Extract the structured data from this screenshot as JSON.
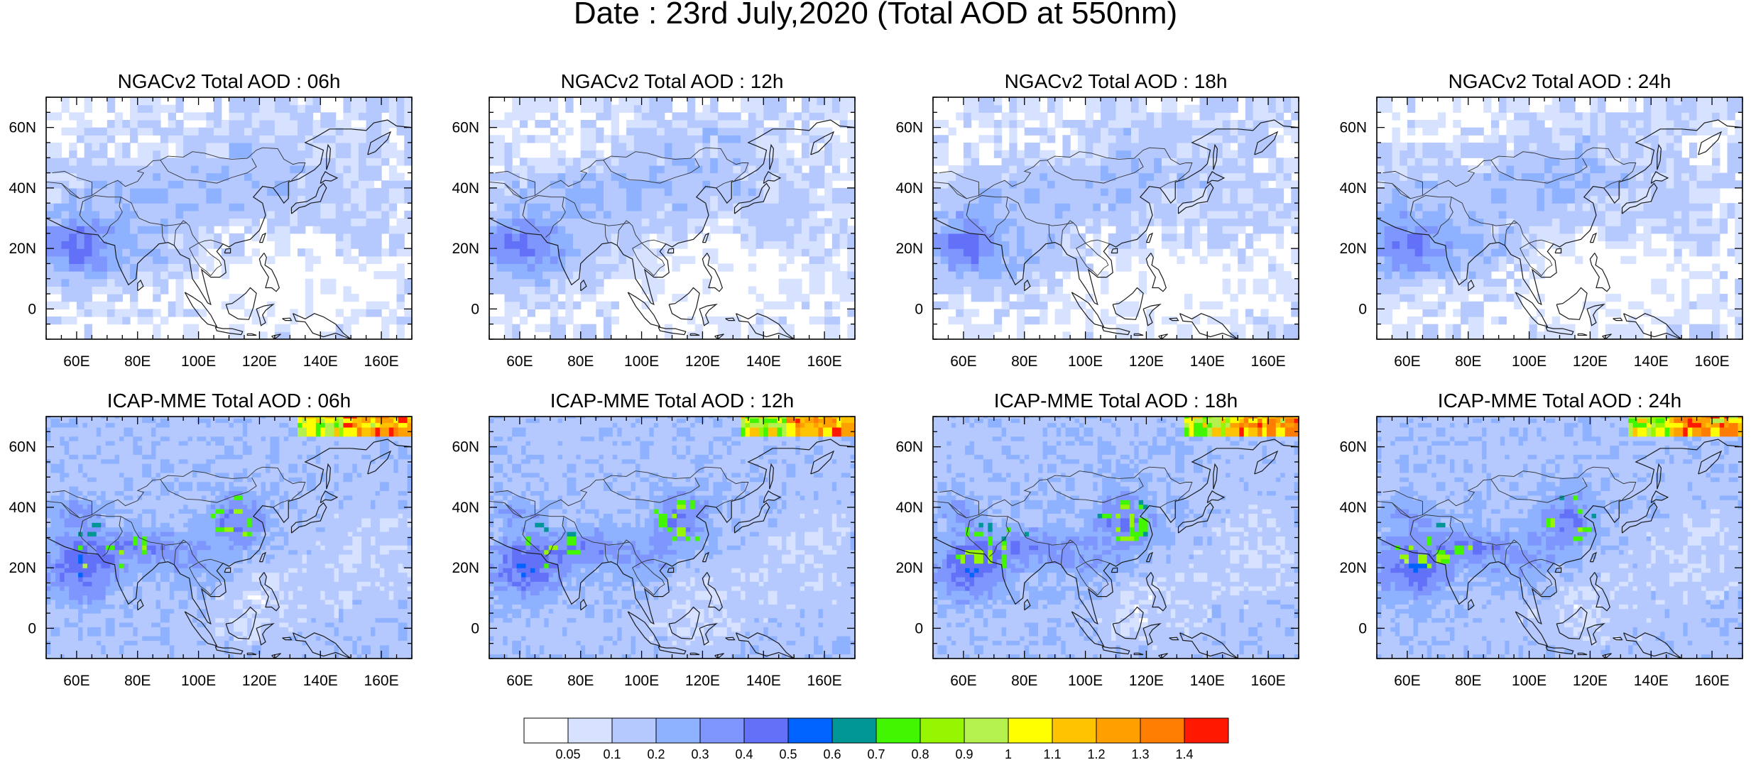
{
  "figure_title": "Date : 23rd July,2020 (Total AOD at 550nm)",
  "panels": [
    {
      "title": "NGACv2 Total AOD : 06h",
      "model": "NGACv2",
      "hour": "06h"
    },
    {
      "title": "NGACv2 Total AOD : 12h",
      "model": "NGACv2",
      "hour": "12h"
    },
    {
      "title": "NGACv2 Total AOD : 18h",
      "model": "NGACv2",
      "hour": "18h"
    },
    {
      "title": "NGACv2 Total AOD : 24h",
      "model": "NGACv2",
      "hour": "24h"
    },
    {
      "title": "ICAP-MME Total AOD : 06h",
      "model": "ICAP-MME",
      "hour": "06h"
    },
    {
      "title": "ICAP-MME Total AOD : 12h",
      "model": "ICAP-MME",
      "hour": "12h"
    },
    {
      "title": "ICAP-MME Total AOD : 18h",
      "model": "ICAP-MME",
      "hour": "18h"
    },
    {
      "title": "ICAP-MME Total AOD : 24h",
      "model": "ICAP-MME",
      "hour": "24h"
    }
  ],
  "map": {
    "lon_range": [
      50,
      170
    ],
    "lat_range": [
      -10,
      70
    ],
    "lon_ticks": [
      "60E",
      "80E",
      "100E",
      "120E",
      "140E",
      "160E"
    ],
    "lat_ticks": [
      "60N",
      "40N",
      "20N",
      "0"
    ]
  },
  "colorbar": {
    "labels": [
      "0.05",
      "0.1",
      "0.2",
      "0.3",
      "0.4",
      "0.5",
      "0.6",
      "0.7",
      "0.8",
      "0.9",
      "1",
      "1.1",
      "1.2",
      "1.3",
      "1.4"
    ],
    "colors": [
      "#ffffff",
      "#d6e2ff",
      "#b5c9ff",
      "#8eb2ff",
      "#7f96ff",
      "#6370f8",
      "#0063ff",
      "#009696",
      "#42f500",
      "#96f500",
      "#b4f04e",
      "#ffff00",
      "#ffc300",
      "#ffa000",
      "#ff7d00",
      "#ff1900"
    ]
  },
  "chart_data": {
    "type": "heatmap",
    "variable": "Total AOD at 550nm",
    "date": "23rd July,2020",
    "models": [
      "NGACv2",
      "ICAP-MME"
    ],
    "forecast_hours": [
      "06h",
      "12h",
      "18h",
      "24h"
    ],
    "x_range": [
      50,
      170
    ],
    "y_range": [
      -10,
      70
    ],
    "levels": [
      0.05,
      0.1,
      0.2,
      0.3,
      0.4,
      0.5,
      0.6,
      0.7,
      0.8,
      0.9,
      1,
      1.1,
      1.2,
      1.3,
      1.4
    ],
    "features": [
      {
        "model": "NGACv2",
        "region": "Arabian Sea / Northwest India",
        "approx_aod": [
          0.3,
          0.5
        ]
      },
      {
        "model": "NGACv2",
        "region": "Central and East Asia",
        "approx_aod": [
          0.1,
          0.3
        ]
      },
      {
        "model": "ICAP-MME",
        "region": "Siberia near 65N, 140E-170E",
        "approx_aod": [
          1.0,
          1.4
        ]
      },
      {
        "model": "ICAP-MME",
        "region": "North China Plain",
        "approx_aod": [
          0.6,
          1.0
        ]
      },
      {
        "model": "ICAP-MME",
        "region": "Arabian Sea / Indo-Gangetic Plain",
        "approx_aod": [
          0.4,
          0.9
        ]
      }
    ]
  }
}
